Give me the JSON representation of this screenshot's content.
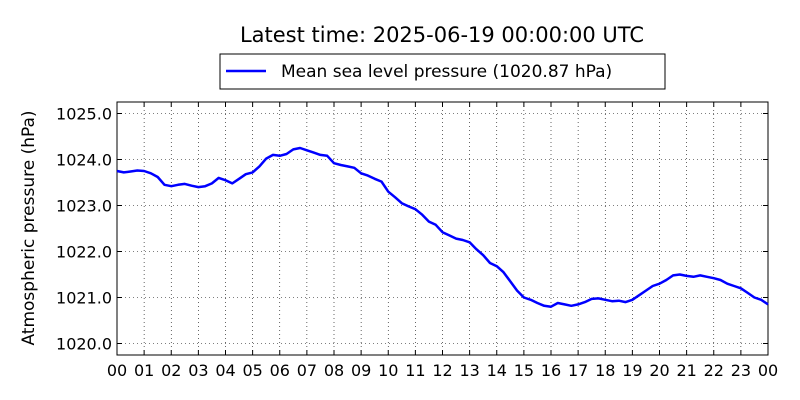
{
  "chart_data": {
    "type": "line",
    "title": "Latest time: 2025-06-19 00:00:00 UTC",
    "xlabel": "",
    "ylabel": "Atmospheric pressure (hPa)",
    "ylim": [
      1019.75,
      1025.25
    ],
    "xlim": [
      0,
      24
    ],
    "grid": true,
    "legend_position": "top-center (above plot)",
    "x_ticks": [
      "00",
      "01",
      "02",
      "03",
      "04",
      "05",
      "06",
      "07",
      "08",
      "09",
      "10",
      "11",
      "12",
      "13",
      "14",
      "15",
      "16",
      "17",
      "18",
      "19",
      "20",
      "21",
      "22",
      "23",
      "00"
    ],
    "y_ticks": [
      "1020.0",
      "1021.0",
      "1022.0",
      "1023.0",
      "1024.0",
      "1025.0"
    ],
    "series": [
      {
        "name": "Mean sea level pressure (1020.87 hPa)",
        "color": "#0000ff",
        "x": [
          0,
          0.25,
          0.5,
          0.75,
          1.0,
          1.25,
          1.5,
          1.75,
          2.0,
          2.25,
          2.5,
          2.75,
          3.0,
          3.25,
          3.5,
          3.75,
          4.0,
          4.25,
          4.5,
          4.75,
          5.0,
          5.25,
          5.5,
          5.75,
          6.0,
          6.25,
          6.5,
          6.75,
          7.0,
          7.25,
          7.5,
          7.75,
          8.0,
          8.25,
          8.5,
          8.75,
          9.0,
          9.25,
          9.5,
          9.75,
          10.0,
          10.25,
          10.5,
          10.75,
          11.0,
          11.25,
          11.5,
          11.75,
          12.0,
          12.25,
          12.5,
          12.75,
          13.0,
          13.25,
          13.5,
          13.75,
          14.0,
          14.25,
          14.5,
          14.75,
          15.0,
          15.25,
          15.5,
          15.75,
          16.0,
          16.25,
          16.5,
          16.75,
          17.0,
          17.25,
          17.5,
          17.75,
          18.0,
          18.25,
          18.5,
          18.75,
          19.0,
          19.25,
          19.5,
          19.75,
          20.0,
          20.25,
          20.5,
          20.75,
          21.0,
          21.25,
          21.5,
          21.75,
          22.0,
          22.25,
          22.5,
          22.75,
          23.0,
          23.25,
          23.5,
          23.75,
          24.0
        ],
        "y": [
          1023.75,
          1023.72,
          1023.74,
          1023.76,
          1023.75,
          1023.7,
          1023.62,
          1023.45,
          1023.42,
          1023.45,
          1023.47,
          1023.43,
          1023.4,
          1023.42,
          1023.48,
          1023.6,
          1023.55,
          1023.48,
          1023.58,
          1023.68,
          1023.72,
          1023.85,
          1024.02,
          1024.1,
          1024.08,
          1024.12,
          1024.22,
          1024.25,
          1024.2,
          1024.15,
          1024.1,
          1024.08,
          1023.92,
          1023.88,
          1023.85,
          1023.82,
          1023.7,
          1023.65,
          1023.58,
          1023.52,
          1023.3,
          1023.18,
          1023.05,
          1022.98,
          1022.92,
          1022.8,
          1022.65,
          1022.58,
          1022.42,
          1022.35,
          1022.28,
          1022.25,
          1022.2,
          1022.05,
          1021.92,
          1021.75,
          1021.68,
          1021.55,
          1021.35,
          1021.15,
          1021.0,
          1020.95,
          1020.88,
          1020.82,
          1020.8,
          1020.88,
          1020.85,
          1020.82,
          1020.85,
          1020.9,
          1020.97,
          1020.98,
          1020.95,
          1020.92,
          1020.93,
          1020.9,
          1020.95,
          1021.05,
          1021.15,
          1021.25,
          1021.3,
          1021.38,
          1021.48,
          1021.5,
          1021.47,
          1021.45,
          1021.48,
          1021.45,
          1021.42,
          1021.38,
          1021.3,
          1021.25,
          1021.2,
          1021.1,
          1021.0,
          1020.95,
          1020.85
        ]
      }
    ]
  }
}
